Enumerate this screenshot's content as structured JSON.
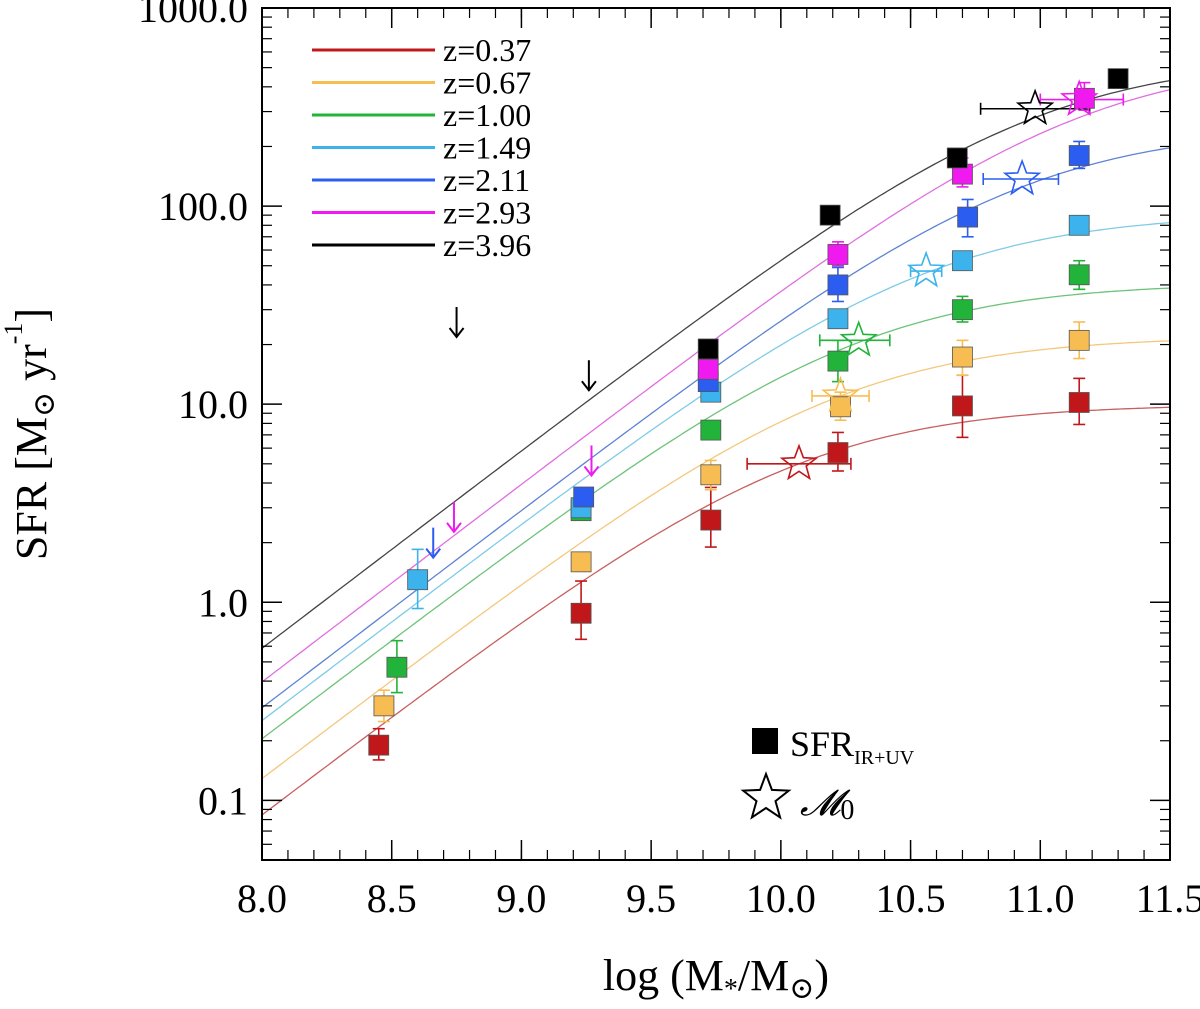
{
  "chart_data": {
    "type": "scatter",
    "xlabel_parts": {
      "pre": "log (M",
      "sub1": "*",
      "mid": "/M",
      "sym": "⊙",
      "post": ")"
    },
    "ylabel_parts": {
      "pre": "SFR [M",
      "sym": "⊙",
      "mid": " yr",
      "sup": "-1",
      "post": "]"
    },
    "xlim": [
      8.0,
      11.5
    ],
    "ylim": [
      0.05,
      1000
    ],
    "x_ticks": [
      "8.0",
      "8.5",
      "9.0",
      "9.5",
      "10.0",
      "10.5",
      "11.0",
      "11.5"
    ],
    "y_ticks": [
      "0.1",
      "1.0",
      "10.0",
      "100.0",
      "1000.0"
    ],
    "series": [
      {
        "name": "z=0.37",
        "color": "#c0181a",
        "line_color": "#c86060",
        "m0": 10.07,
        "s0": 10.0,
        "points": [
          [
            8.45,
            0.19,
            0.23,
            0.16
          ],
          [
            9.23,
            0.88,
            1.28,
            0.65
          ],
          [
            9.73,
            2.6,
            3.8,
            1.9
          ],
          [
            10.22,
            5.7,
            7.2,
            4.6
          ],
          [
            10.7,
            9.8,
            14.0,
            6.8
          ],
          [
            11.15,
            10.2,
            13.5,
            7.9
          ]
        ],
        "star": {
          "x": 10.07,
          "y": 5.0,
          "xlo": 9.87,
          "xhi": 10.27
        }
      },
      {
        "name": "z=0.67",
        "color": "#f7bd52",
        "line_color": "#f4c87c",
        "m0": 10.23,
        "s0": 22.0,
        "points": [
          [
            8.47,
            0.3,
            0.36,
            0.25
          ],
          [
            9.23,
            1.6,
            1.6,
            1.6
          ],
          [
            9.73,
            4.4,
            5.2,
            3.7
          ],
          [
            10.23,
            9.7,
            11.5,
            8.3
          ],
          [
            10.7,
            17.3,
            21.0,
            14.0
          ],
          [
            11.15,
            21.0,
            26.0,
            17.0
          ]
        ],
        "star": {
          "x": 10.23,
          "y": 11.0,
          "xlo": 10.12,
          "xhi": 10.34
        }
      },
      {
        "name": "z=1.00",
        "color": "#22b43a",
        "line_color": "#6ec37a",
        "m0": 10.3,
        "s0": 41.0,
        "points": [
          [
            8.52,
            0.47,
            0.64,
            0.35
          ],
          [
            9.23,
            2.9,
            2.9,
            2.9
          ],
          [
            9.73,
            7.4,
            7.4,
            7.4
          ],
          [
            10.22,
            16.5,
            21.0,
            13.0
          ],
          [
            10.7,
            30.0,
            35.0,
            26.0
          ],
          [
            11.15,
            45.0,
            53.0,
            38.0
          ]
        ],
        "star": {
          "x": 10.3,
          "y": 21.0,
          "xlo": 10.15,
          "xhi": 10.42
        }
      },
      {
        "name": "z=1.49",
        "color": "#3cb3ec",
        "line_color": "#7fcbe8",
        "m0": 10.56,
        "s0": 92.0,
        "points": [
          [
            8.6,
            1.3,
            1.85,
            0.93
          ],
          [
            9.23,
            3.0,
            3.0,
            3.0
          ],
          [
            9.73,
            11.5,
            11.5,
            11.5
          ],
          [
            10.22,
            27.0,
            27.0,
            27.0
          ],
          [
            10.7,
            53.0,
            53.0,
            53.0
          ],
          [
            11.15,
            80.0,
            80.0,
            80.0
          ]
        ],
        "star": {
          "x": 10.56,
          "y": 47.0,
          "xlo": 10.5,
          "xhi": 10.62
        }
      },
      {
        "name": "z=2.11",
        "color": "#2b5ef0",
        "line_color": "#5d84d4",
        "m0": 10.93,
        "s0": 250.0,
        "points": [
          [
            9.24,
            3.4,
            3.4,
            3.4
          ],
          [
            9.72,
            13.0,
            13.0,
            13.0
          ],
          [
            10.22,
            40.0,
            49.0,
            33.0
          ],
          [
            10.72,
            88.0,
            108.0,
            70.0
          ],
          [
            11.15,
            180.0,
            212.0,
            155.0
          ]
        ],
        "star": {
          "x": 10.93,
          "y": 137.0,
          "xlo": 10.78,
          "xhi": 11.07
        }
      },
      {
        "name": "z=2.93",
        "color": "#f01af0",
        "line_color": "#e070e0",
        "m0": 11.15,
        "s0": 560.0,
        "points": [
          [
            9.72,
            15.0,
            15.0,
            15.0
          ],
          [
            10.22,
            57.0,
            66.0,
            50.0
          ],
          [
            10.7,
            145.0,
            175.0,
            125.0
          ],
          [
            11.17,
            350.0,
            420.0,
            305.0
          ]
        ],
        "star": {
          "x": 11.15,
          "y": 345.0,
          "xlo": 11.0,
          "xhi": 11.32
        }
      },
      {
        "name": "z=3.96",
        "color": "#000000",
        "line_color": "#444444",
        "m0": 10.98,
        "s0": 560.0,
        "points": [
          [
            9.72,
            19.0,
            19.0,
            19.0
          ],
          [
            10.19,
            90.0,
            90.0,
            90.0
          ],
          [
            10.68,
            175.0,
            190.0,
            160.0
          ],
          [
            11.3,
            440.0,
            470.0,
            415.0
          ]
        ],
        "star": {
          "x": 10.98,
          "y": 310.0,
          "xlo": 10.77,
          "xhi": 11.19
        }
      }
    ],
    "upper_limits": [
      {
        "x": 8.75,
        "y": 26.0,
        "color": "#000000"
      },
      {
        "x": 9.26,
        "y": 14.0,
        "color": "#000000"
      },
      {
        "x": 8.74,
        "y": 2.7,
        "color": "#f01af0"
      },
      {
        "x": 9.27,
        "y": 5.2,
        "color": "#f01af0"
      },
      {
        "x": 8.66,
        "y": 2.0,
        "color": "#2b5ef0"
      }
    ],
    "key": {
      "square_pre": "SFR",
      "square_sub": "IR+UV",
      "star_label": "𝓜",
      "star_sub": "0"
    }
  }
}
